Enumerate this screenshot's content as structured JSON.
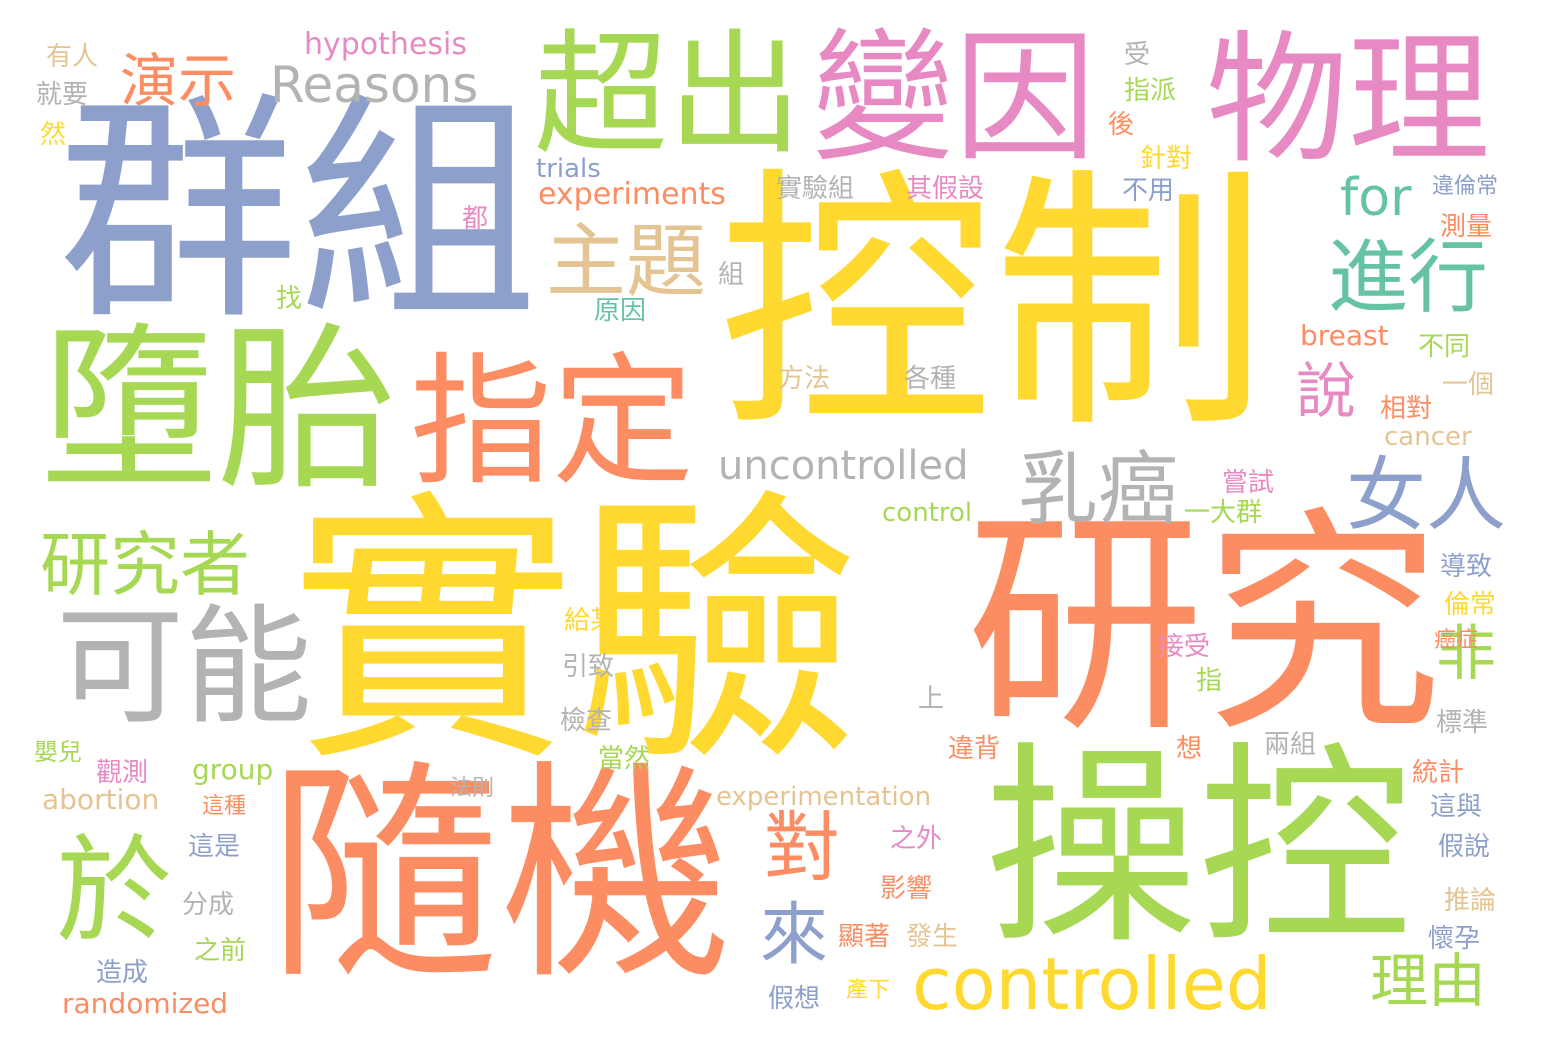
{
  "words": [
    {
      "text": "實驗",
      "color": "#ffd92f",
      "rank": 1
    },
    {
      "text": "控制",
      "color": "#ffd92f",
      "rank": 2
    },
    {
      "text": "研究",
      "color": "#fc8d62",
      "rank": 3
    },
    {
      "text": "群組",
      "color": "#8da0cb",
      "rank": 4
    },
    {
      "text": "隨機",
      "color": "#fc8d62",
      "rank": 5
    },
    {
      "text": "操控",
      "color": "#a6d854",
      "rank": 6
    },
    {
      "text": "墮胎",
      "color": "#a6d854",
      "rank": 7
    },
    {
      "text": "變因",
      "color": "#e78ac3",
      "rank": 8
    },
    {
      "text": "超出",
      "color": "#a6d854",
      "rank": 9
    },
    {
      "text": "物理",
      "color": "#e78ac3",
      "rank": 10
    },
    {
      "text": "指定",
      "color": "#fc8d62",
      "rank": 11
    },
    {
      "text": "可能",
      "color": "#b3b3b3",
      "rank": 12
    },
    {
      "text": "於",
      "color": "#a6d854",
      "rank": 13
    },
    {
      "text": "controlled",
      "color": "#ffd92f",
      "rank": 14
    },
    {
      "text": "主題",
      "color": "#e5c494",
      "rank": 15
    },
    {
      "text": "進行",
      "color": "#66c2a5",
      "rank": 16
    },
    {
      "text": "乳癌",
      "color": "#b3b3b3",
      "rank": 17
    },
    {
      "text": "女人",
      "color": "#8da0cb",
      "rank": 18
    },
    {
      "text": "研究者",
      "color": "#a6d854",
      "rank": 19
    },
    {
      "text": "Reasons",
      "color": "#b3b3b3",
      "rank": 20
    },
    {
      "text": "演示",
      "color": "#fc8d62",
      "rank": 21
    },
    {
      "text": "uncontrolled",
      "color": "#b3b3b3",
      "rank": 22
    },
    {
      "text": "對",
      "color": "#fc8d62",
      "rank": 23
    },
    {
      "text": "來",
      "color": "#8da0cb",
      "rank": 24
    },
    {
      "text": "說",
      "color": "#e78ac3",
      "rank": 25
    },
    {
      "text": "for",
      "color": "#66c2a5",
      "rank": 26
    },
    {
      "text": "非",
      "color": "#a6d854",
      "rank": 27
    },
    {
      "text": "理由",
      "color": "#a6d854",
      "rank": 28
    },
    {
      "text": "hypothesis",
      "color": "#e78ac3",
      "rank": 29
    },
    {
      "text": "experiments",
      "color": "#fc8d62",
      "rank": 30
    },
    {
      "text": "trials",
      "color": "#8da0cb",
      "rank": 31
    },
    {
      "text": "有人",
      "color": "#e5c494",
      "rank": 32
    },
    {
      "text": "就要",
      "color": "#b3b3b3",
      "rank": 33
    },
    {
      "text": "然",
      "color": "#ffd92f",
      "rank": 34
    },
    {
      "text": "受",
      "color": "#b3b3b3",
      "rank": 35
    },
    {
      "text": "指派",
      "color": "#a6d854",
      "rank": 36
    },
    {
      "text": "後",
      "color": "#fc8d62",
      "rank": 37
    },
    {
      "text": "針對",
      "color": "#ffd92f",
      "rank": 38
    },
    {
      "text": "實驗組",
      "color": "#b3b3b3",
      "rank": 39
    },
    {
      "text": "其假設",
      "color": "#e78ac3",
      "rank": 40
    },
    {
      "text": "不用",
      "color": "#8da0cb",
      "rank": 41
    },
    {
      "text": "違倫常",
      "color": "#8da0cb",
      "rank": 42
    },
    {
      "text": "都",
      "color": "#e78ac3",
      "rank": 43
    },
    {
      "text": "測量",
      "color": "#fc8d62",
      "rank": 44
    },
    {
      "text": "組",
      "color": "#b3b3b3",
      "rank": 45
    },
    {
      "text": "找",
      "color": "#a6d854",
      "rank": 46
    },
    {
      "text": "原因",
      "color": "#66c2a5",
      "rank": 47
    },
    {
      "text": "breast",
      "color": "#fc8d62",
      "rank": 48
    },
    {
      "text": "不同",
      "color": "#a6d854",
      "rank": 49
    },
    {
      "text": "一個",
      "color": "#e5c494",
      "rank": 50
    },
    {
      "text": "方法",
      "color": "#e5c494",
      "rank": 51
    },
    {
      "text": "各種",
      "color": "#b3b3b3",
      "rank": 52
    },
    {
      "text": "相對",
      "color": "#fc8d62",
      "rank": 53
    },
    {
      "text": "cancer",
      "color": "#e5c494",
      "rank": 54
    },
    {
      "text": "嘗試",
      "color": "#e78ac3",
      "rank": 55
    },
    {
      "text": "control",
      "color": "#a6d854",
      "rank": 56
    },
    {
      "text": "一大群",
      "color": "#a6d854",
      "rank": 57
    },
    {
      "text": "導致",
      "color": "#8da0cb",
      "rank": 58
    },
    {
      "text": "給某",
      "color": "#ffd92f",
      "rank": 59
    },
    {
      "text": "倫常",
      "color": "#ffd92f",
      "rank": 60
    },
    {
      "text": "引致",
      "color": "#b3b3b3",
      "rank": 61
    },
    {
      "text": "接受",
      "color": "#e78ac3",
      "rank": 62
    },
    {
      "text": "癌症",
      "color": "#fc8d62",
      "rank": 63
    },
    {
      "text": "指",
      "color": "#a6d854",
      "rank": 64
    },
    {
      "text": "上",
      "color": "#b3b3b3",
      "rank": 65
    },
    {
      "text": "檢查",
      "color": "#b3b3b3",
      "rank": 66
    },
    {
      "text": "標準",
      "color": "#b3b3b3",
      "rank": 67
    },
    {
      "text": "嬰兒",
      "color": "#a6d854",
      "rank": 68
    },
    {
      "text": "違背",
      "color": "#fc8d62",
      "rank": 69
    },
    {
      "text": "想",
      "color": "#fc8d62",
      "rank": 70
    },
    {
      "text": "兩組",
      "color": "#b3b3b3",
      "rank": 71
    },
    {
      "text": "觀測",
      "color": "#e78ac3",
      "rank": 72
    },
    {
      "text": "group",
      "color": "#a6d854",
      "rank": 73
    },
    {
      "text": "當然",
      "color": "#a6d854",
      "rank": 74
    },
    {
      "text": "統計",
      "color": "#fc8d62",
      "rank": 75
    },
    {
      "text": "abortion",
      "color": "#e5c494",
      "rank": 76
    },
    {
      "text": "法則",
      "color": "#b3b3b3",
      "rank": 77
    },
    {
      "text": "experimentation",
      "color": "#e5c494",
      "rank": 78
    },
    {
      "text": "這與",
      "color": "#8da0cb",
      "rank": 79
    },
    {
      "text": "這種",
      "color": "#fc8d62",
      "rank": 80
    },
    {
      "text": "這是",
      "color": "#8da0cb",
      "rank": 81
    },
    {
      "text": "之外",
      "color": "#e78ac3",
      "rank": 82
    },
    {
      "text": "假說",
      "color": "#8da0cb",
      "rank": 83
    },
    {
      "text": "分成",
      "color": "#b3b3b3",
      "rank": 84
    },
    {
      "text": "影響",
      "color": "#fc8d62",
      "rank": 85
    },
    {
      "text": "推論",
      "color": "#e5c494",
      "rank": 86
    },
    {
      "text": "之前",
      "color": "#a6d854",
      "rank": 87
    },
    {
      "text": "顯著",
      "color": "#fc8d62",
      "rank": 88
    },
    {
      "text": "發生",
      "color": "#e5c494",
      "rank": 89
    },
    {
      "text": "懷孕",
      "color": "#8da0cb",
      "rank": 90
    },
    {
      "text": "造成",
      "color": "#8da0cb",
      "rank": 91
    },
    {
      "text": "randomized",
      "color": "#fc8d62",
      "rank": 92
    },
    {
      "text": "假想",
      "color": "#8da0cb",
      "rank": 93
    },
    {
      "text": "產下",
      "color": "#ffd92f",
      "rank": 94
    }
  ]
}
